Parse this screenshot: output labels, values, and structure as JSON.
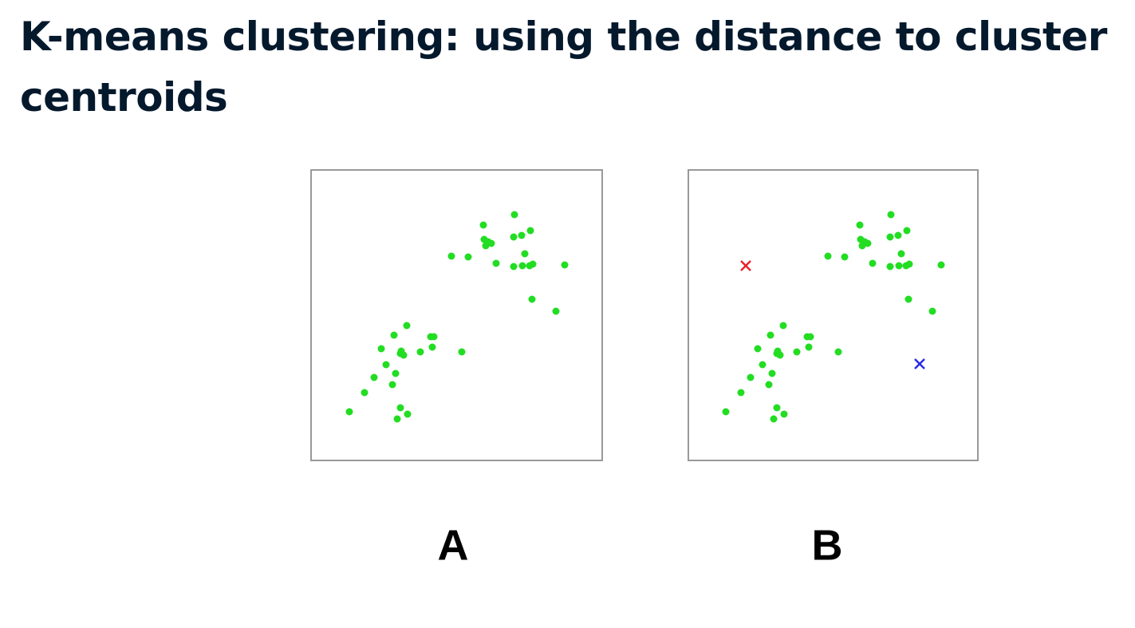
{
  "title": "K-means clustering: using the distance to cluster centroids",
  "panels": [
    {
      "label": "A"
    },
    {
      "label": "B"
    }
  ]
}
